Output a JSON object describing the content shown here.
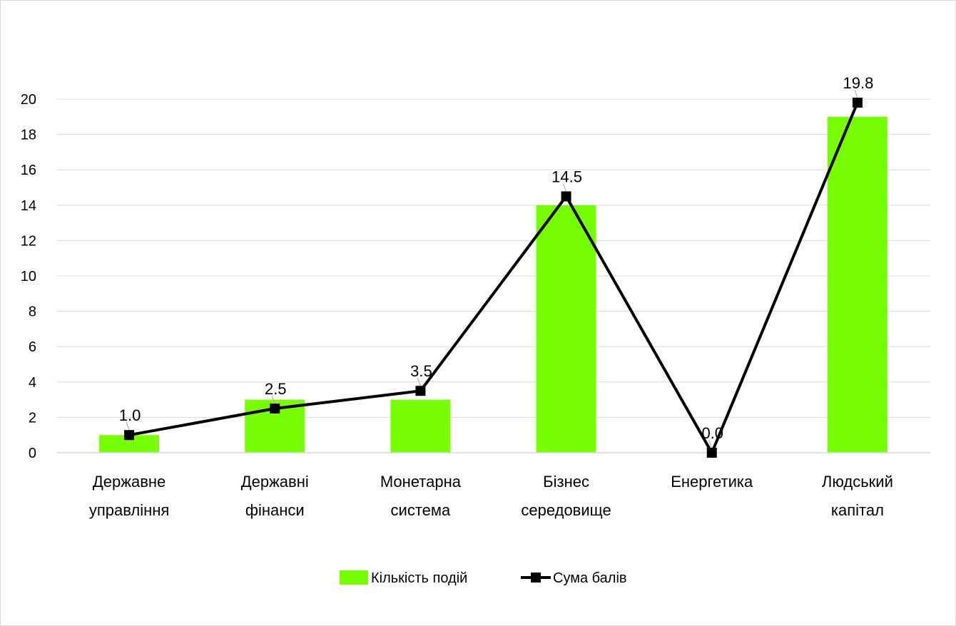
{
  "chart_data": {
    "type": "bar",
    "categories": [
      [
        "Державне",
        "управління"
      ],
      [
        "Державні",
        "фінанси"
      ],
      [
        "Монетарна",
        "система"
      ],
      [
        "Бізнес",
        "середовище"
      ],
      [
        "Енергетика"
      ],
      [
        "Людський",
        "капітал"
      ]
    ],
    "series": [
      {
        "name": "Кількість подій",
        "type": "bar",
        "color": "#76ff03",
        "values": [
          1,
          3,
          3,
          14,
          0,
          19
        ]
      },
      {
        "name": "Сума балів",
        "type": "line",
        "color": "#000000",
        "marker": "square",
        "values": [
          1.0,
          2.5,
          3.5,
          14.5,
          0.0,
          19.8
        ],
        "data_labels": [
          "1.0",
          "2.5",
          "3.5",
          "14.5",
          "0.0",
          "19.8"
        ]
      }
    ],
    "y_ticks": [
      "0",
      "2",
      "4",
      "6",
      "8",
      "10",
      "12",
      "14",
      "16",
      "18",
      "20"
    ],
    "ylim": [
      0,
      20
    ],
    "grid": "horizontal",
    "legend_position": "bottom"
  }
}
